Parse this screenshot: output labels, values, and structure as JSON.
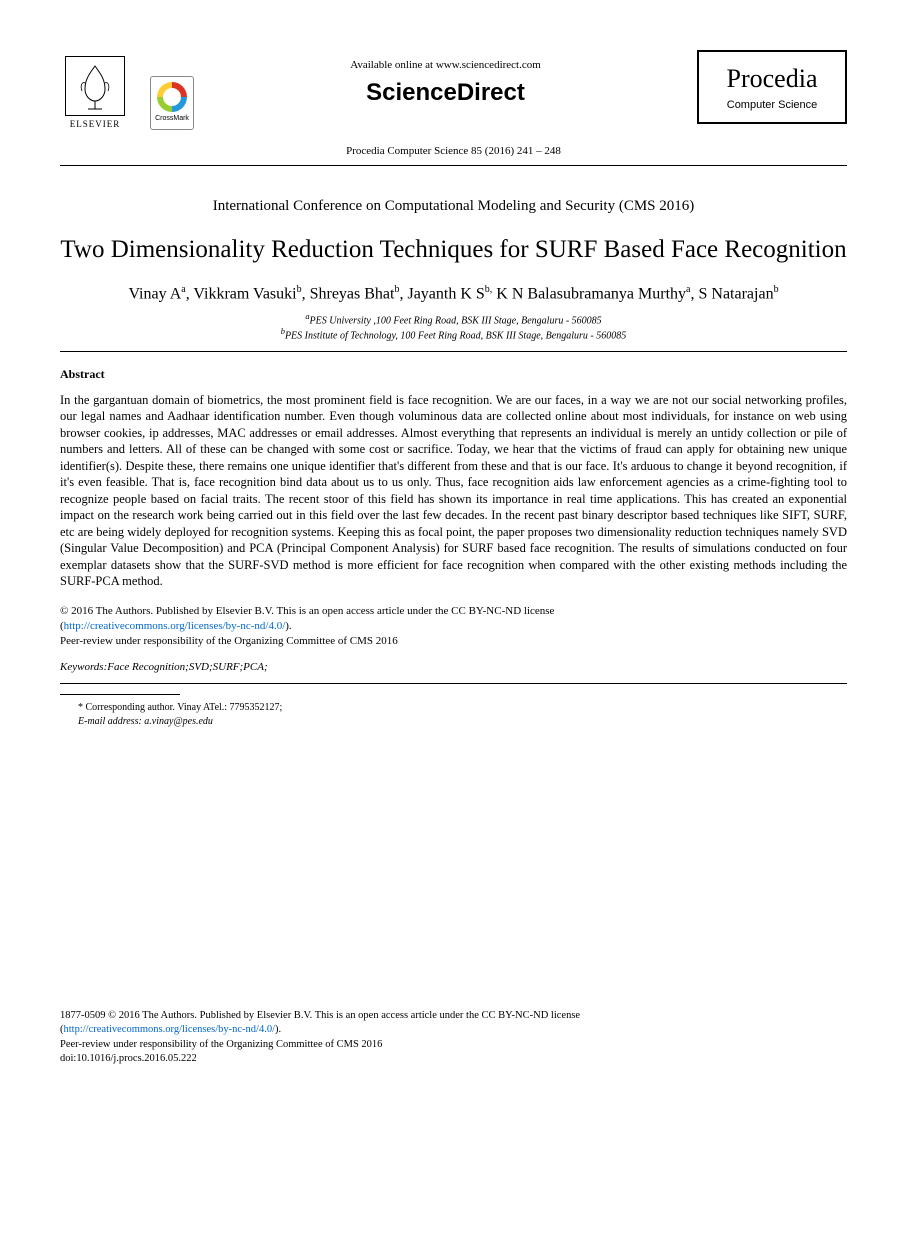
{
  "header": {
    "available": "Available online at www.sciencedirect.com",
    "brand": "ScienceDirect",
    "elsevier": "ELSEVIER",
    "crossmark": "CrossMark",
    "procedia": "Procedia",
    "procedia_sub": "Computer Science",
    "citation": "Procedia Computer Science 85 (2016) 241 – 248"
  },
  "conference": "International Conference on Computational Modeling and Security (CMS 2016)",
  "title": "Two Dimensionality Reduction Techniques for SURF Based Face Recognition",
  "authors_html": "Vinay A<sup>a</sup>, Vikkram Vasuki<sup>b</sup>, Shreyas Bhat<sup>b</sup>, Jayanth K S<sup>b,</sup> K N Balasubramanya Murthy<sup>a</sup>, S Natarajan<sup>b</sup>",
  "affiliations": {
    "a": "PES University ,100 Feet Ring Road, BSK III Stage, Bengaluru - 560085",
    "b": "PES Institute of Technology, 100 Feet Ring Road, BSK III Stage, Bengaluru - 560085"
  },
  "abstract_heading": "Abstract",
  "abstract": "In the gargantuan domain of biometrics, the most prominent field is face recognition. We are our faces, in a way we are not our social networking profiles, our legal names and Aadhaar identification number. Even though voluminous data are collected online about most individuals, for instance on web using browser cookies, ip addresses, MAC addresses or email addresses. Almost everything that represents an individual is merely an untidy collection or pile of numbers and letters. All of these can be changed with some cost or sacrifice. Today, we hear that the victims of fraud can apply for obtaining new unique identifier(s). Despite these, there remains one unique identifier that's different from these and that is our face.  It's arduous to change it beyond recognition, if it's even feasible. That is, face recognition bind data about us to us only. Thus, face recognition aids law enforcement agencies as a crime-fighting tool to recognize people based on facial traits. The recent stoor of this field has shown its importance in real time applications. This has created an exponential impact on the research work being carried out in this field over the last few decades. In the recent past binary descriptor based techniques like SIFT, SURF, etc are being widely deployed for recognition systems. Keeping this as focal point, the paper proposes two dimensionality reduction techniques namely SVD (Singular Value Decomposition) and PCA (Principal Component Analysis) for SURF based face recognition. The results of simulations conducted on four exemplar datasets show that the SURF-SVD method is more efficient for face recognition when compared with the other existing methods including the SURF-PCA method.",
  "copyright": {
    "line1": "© 2016 The Authors. Published by Elsevier B.V. This is an open access article under the CC BY-NC-ND license",
    "license_url": "http://creativecommons.org/licenses/by-nc-nd/4.0/",
    "peer": "Peer-review under responsibility of the Organizing Committee of CMS 2016"
  },
  "keywords_label": "Keywords:",
  "keywords": "Face Recognition;SVD;SURF;PCA;",
  "corresponding": {
    "line1": "* Corresponding author. Vinay ATel.: 7795352127;",
    "email_label": "E-mail address:",
    "email": "a.vinay@pes.edu"
  },
  "footer": {
    "issn": "1877-0509 © 2016 The Authors. Published by Elsevier B.V. This is an open access article under the CC BY-NC-ND license",
    "license_url": "http://creativecommons.org/licenses/by-nc-nd/4.0/",
    "peer": "Peer-review under responsibility of the Organizing Committee of CMS 2016",
    "doi": "doi:10.1016/j.procs.2016.05.222"
  },
  "colors": {
    "text": "#000000",
    "background": "#ffffff",
    "link": "#0066cc",
    "rule": "#000000"
  },
  "typography": {
    "body_font": "Times New Roman",
    "title_size_pt": 19,
    "author_size_pt": 12,
    "abstract_size_pt": 9.5,
    "footer_size_pt": 8
  }
}
